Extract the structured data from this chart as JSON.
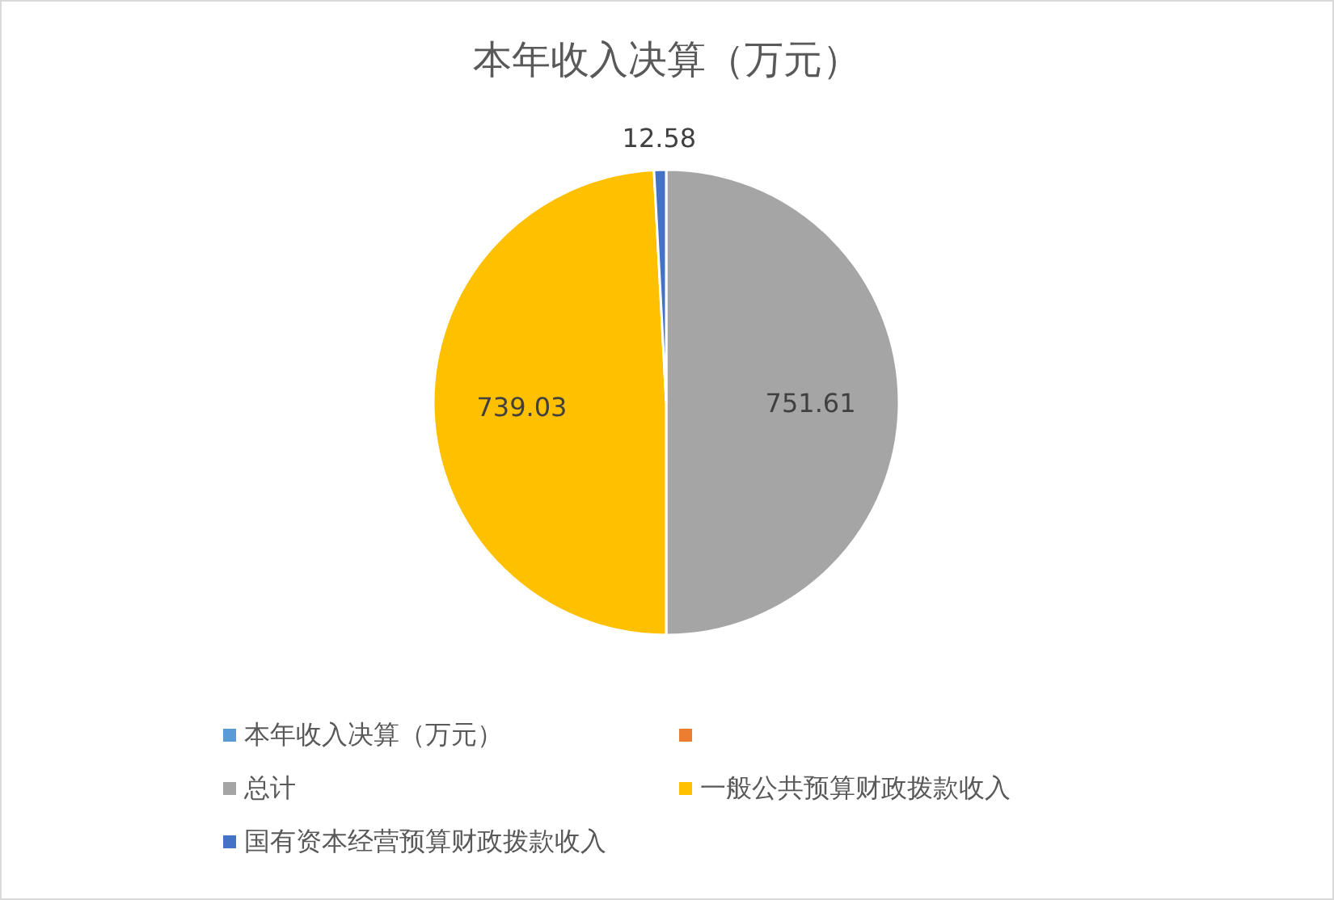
{
  "chart_data": {
    "type": "pie",
    "title": "本年收入决算（万元）",
    "categories": [
      "本年收入决算（万元）",
      null,
      "总计",
      "一般公共预算财政拨款收入",
      "国有资本经营预算财政拨款收入"
    ],
    "values": [
      null,
      null,
      751.61,
      739.03,
      12.58
    ],
    "colors": [
      "#5b9bd5",
      "#ed7d31",
      "#a5a5a5",
      "#ffc000",
      "#4472c4"
    ],
    "data_labels": true,
    "legend": "bottom"
  }
}
